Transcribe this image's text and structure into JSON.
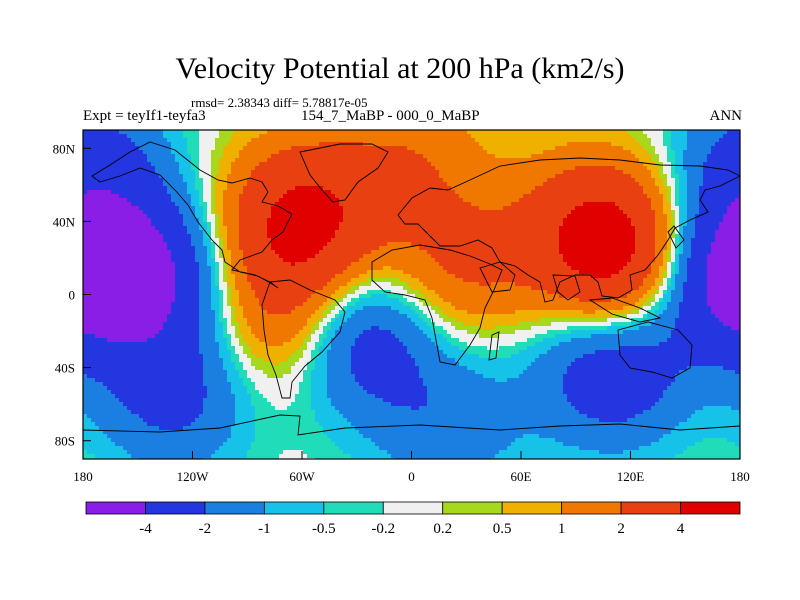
{
  "chart_data": {
    "type": "heatmap",
    "title": "Velocity Potential at 200 hPa (km2/s)",
    "stats": "rmsd= 2.38343 diff= 5.78817e-05",
    "left_label": "Expt = teyIf1-teyfa3",
    "center_label": "154_7_MaBP - 000_0_MaBP",
    "right_label": "ANN",
    "x_axis": {
      "range": [
        -180,
        180
      ],
      "ticks": [
        -180,
        -120,
        -60,
        0,
        60,
        120,
        180
      ],
      "tick_labels": [
        "180",
        "120W",
        "60W",
        "0",
        "60E",
        "120E",
        "180"
      ]
    },
    "y_axis": {
      "range": [
        -90,
        90
      ],
      "ticks": [
        80,
        40,
        0,
        -40,
        -80
      ],
      "tick_labels": [
        "80N",
        "40N",
        "0",
        "40S",
        "80S"
      ]
    },
    "contour_levels": [
      -4,
      -2,
      -1,
      -0.5,
      -0.2,
      0.2,
      0.5,
      1,
      2,
      4
    ],
    "colorbar_labels": [
      "-4",
      "-2",
      "-1",
      "-0.5",
      "-0.2",
      "0.2",
      "0.5",
      "1",
      "2",
      "4"
    ],
    "colors": [
      "#8a1ee6",
      "#2436e0",
      "#1a7fe0",
      "#16c2e8",
      "#20dcb8",
      "#f0f0f0",
      "#a8d81c",
      "#f0b000",
      "#f07800",
      "#e84010",
      "#e00000"
    ],
    "centers": [
      {
        "lon": -60,
        "lat": 40,
        "value": 4.6
      },
      {
        "lon": -65,
        "lat": -15,
        "value": 2.6
      },
      {
        "lon": 25,
        "lat": 15,
        "value": 2.2
      },
      {
        "lon": 100,
        "lat": 35,
        "value": 3.2
      },
      {
        "lon": 120,
        "lat": 15,
        "value": 3.6
      },
      {
        "lon": 0,
        "lat": 75,
        "value": 1.6
      },
      {
        "lon": -150,
        "lat": 10,
        "value": -4.6
      },
      {
        "lon": 165,
        "lat": 10,
        "value": -4.0
      },
      {
        "lon": -30,
        "lat": -22,
        "value": -3.6
      },
      {
        "lon": 110,
        "lat": -40,
        "value": -3.3
      },
      {
        "lon": -130,
        "lat": -55,
        "value": -2.4
      },
      {
        "lon": 20,
        "lat": -70,
        "value": -1.6
      },
      {
        "lon": -175,
        "lat": 70,
        "value": -2.5
      }
    ]
  }
}
